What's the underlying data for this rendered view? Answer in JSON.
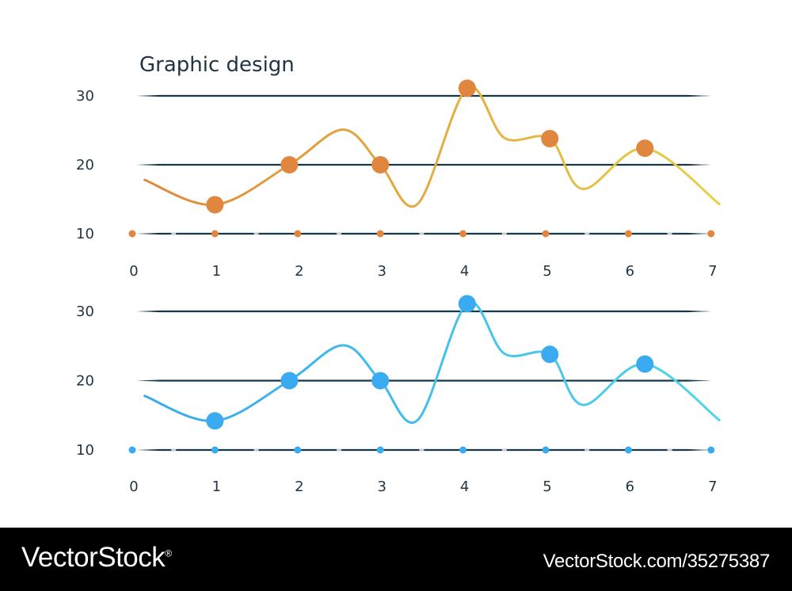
{
  "chart_data": [
    {
      "type": "line",
      "title": "Graphic design",
      "x_ticks": [
        "0",
        "1",
        "2",
        "3",
        "4",
        "5",
        "6",
        "7"
      ],
      "y_ticks": [
        "10",
        "20",
        "30"
      ],
      "xlim": [
        0,
        7
      ],
      "ylim": [
        10,
        30
      ],
      "grid": true,
      "colors": {
        "start": "#e08a3c",
        "end": "#e6d046",
        "marker": "#e0863f"
      },
      "series": [
        {
          "markers": [
            {
              "x": 1.0,
              "y": 14.2
            },
            {
              "x": 1.9,
              "y": 20.0
            },
            {
              "x": 3.0,
              "y": 20.0
            },
            {
              "x": 4.05,
              "y": 31.1
            },
            {
              "x": 5.05,
              "y": 23.8
            },
            {
              "x": 6.2,
              "y": 22.4
            }
          ],
          "curve": [
            {
              "x": 0.15,
              "y": 17.8
            },
            {
              "x": 1.0,
              "y": 14.2
            },
            {
              "x": 1.9,
              "y": 20.0
            },
            {
              "x": 2.55,
              "y": 25.1
            },
            {
              "x": 3.0,
              "y": 20.0
            },
            {
              "x": 3.45,
              "y": 14.3
            },
            {
              "x": 4.05,
              "y": 31.1
            },
            {
              "x": 4.5,
              "y": 23.9
            },
            {
              "x": 5.05,
              "y": 23.8
            },
            {
              "x": 5.45,
              "y": 16.5
            },
            {
              "x": 6.2,
              "y": 22.4
            },
            {
              "x": 7.1,
              "y": 14.3
            }
          ]
        }
      ]
    },
    {
      "type": "line",
      "title": "",
      "x_ticks": [
        "0",
        "1",
        "2",
        "3",
        "4",
        "5",
        "6",
        "7"
      ],
      "y_ticks": [
        "10",
        "20",
        "30"
      ],
      "xlim": [
        0,
        7
      ],
      "ylim": [
        10,
        30
      ],
      "grid": true,
      "colors": {
        "start": "#3aa9ec",
        "end": "#4fd6ea",
        "marker": "#3aabf0"
      },
      "series": [
        {
          "markers": [
            {
              "x": 1.0,
              "y": 14.2
            },
            {
              "x": 1.9,
              "y": 20.0
            },
            {
              "x": 3.0,
              "y": 20.0
            },
            {
              "x": 4.05,
              "y": 31.1
            },
            {
              "x": 5.05,
              "y": 23.8
            },
            {
              "x": 6.2,
              "y": 22.4
            }
          ],
          "curve": [
            {
              "x": 0.15,
              "y": 17.8
            },
            {
              "x": 1.0,
              "y": 14.2
            },
            {
              "x": 1.9,
              "y": 20.0
            },
            {
              "x": 2.55,
              "y": 25.1
            },
            {
              "x": 3.0,
              "y": 20.0
            },
            {
              "x": 3.45,
              "y": 14.3
            },
            {
              "x": 4.05,
              "y": 31.1
            },
            {
              "x": 4.5,
              "y": 23.9
            },
            {
              "x": 5.05,
              "y": 23.8
            },
            {
              "x": 5.45,
              "y": 16.5
            },
            {
              "x": 6.2,
              "y": 22.4
            },
            {
              "x": 7.1,
              "y": 14.3
            }
          ]
        }
      ]
    }
  ],
  "footer": {
    "logo_text": "VectorStock",
    "logo_trademark": "®",
    "image_id": "VectorStock.com/35275387"
  }
}
